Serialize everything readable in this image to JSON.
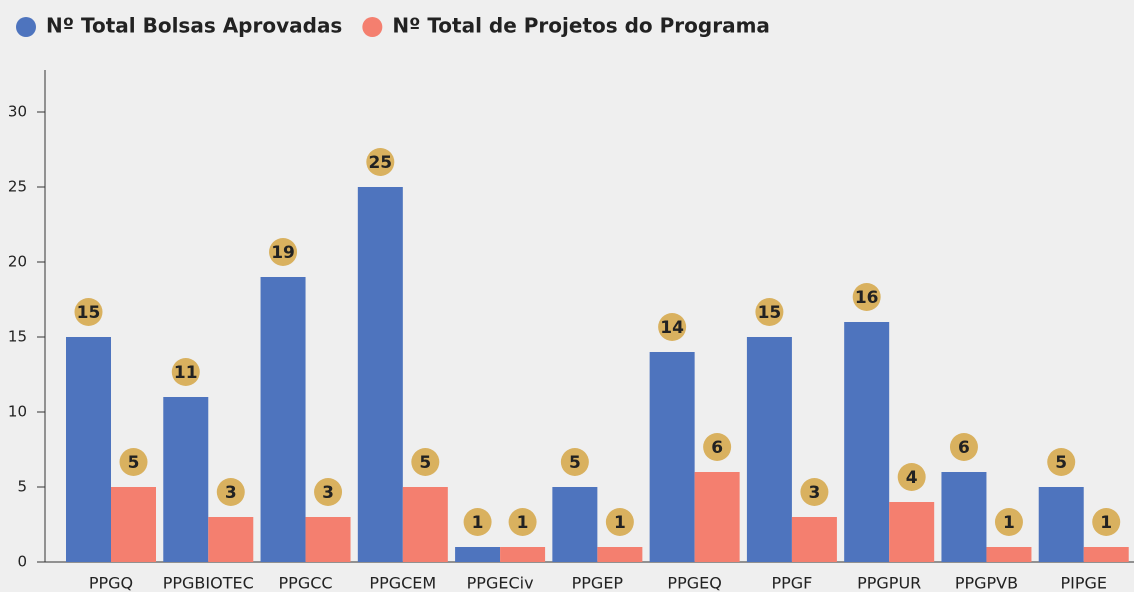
{
  "chart_data": {
    "type": "bar",
    "categories": [
      "PPGQ",
      "PPGBIOTEC",
      "PPGCC",
      "PPGCEM",
      "PPGECiv",
      "PPGEP",
      "PPGEQ",
      "PPGF",
      "PPGPUR",
      "PPGPVB",
      "PIPGE"
    ],
    "series": [
      {
        "name": "Nº Total Bolsas Aprovadas",
        "color": "#4e74be",
        "values": [
          15,
          11,
          19,
          25,
          1,
          5,
          14,
          15,
          16,
          6,
          5
        ]
      },
      {
        "name": "Nº Total de Projetos do Programa",
        "color": "#f47f6f",
        "values": [
          5,
          3,
          3,
          5,
          1,
          1,
          6,
          3,
          4,
          1,
          1
        ]
      }
    ],
    "ylim": [
      0,
      32.8
    ],
    "yticks": [
      0,
      5,
      10,
      15,
      20,
      25,
      30
    ],
    "legend": "top-left",
    "label_color": "#d9b15f"
  }
}
